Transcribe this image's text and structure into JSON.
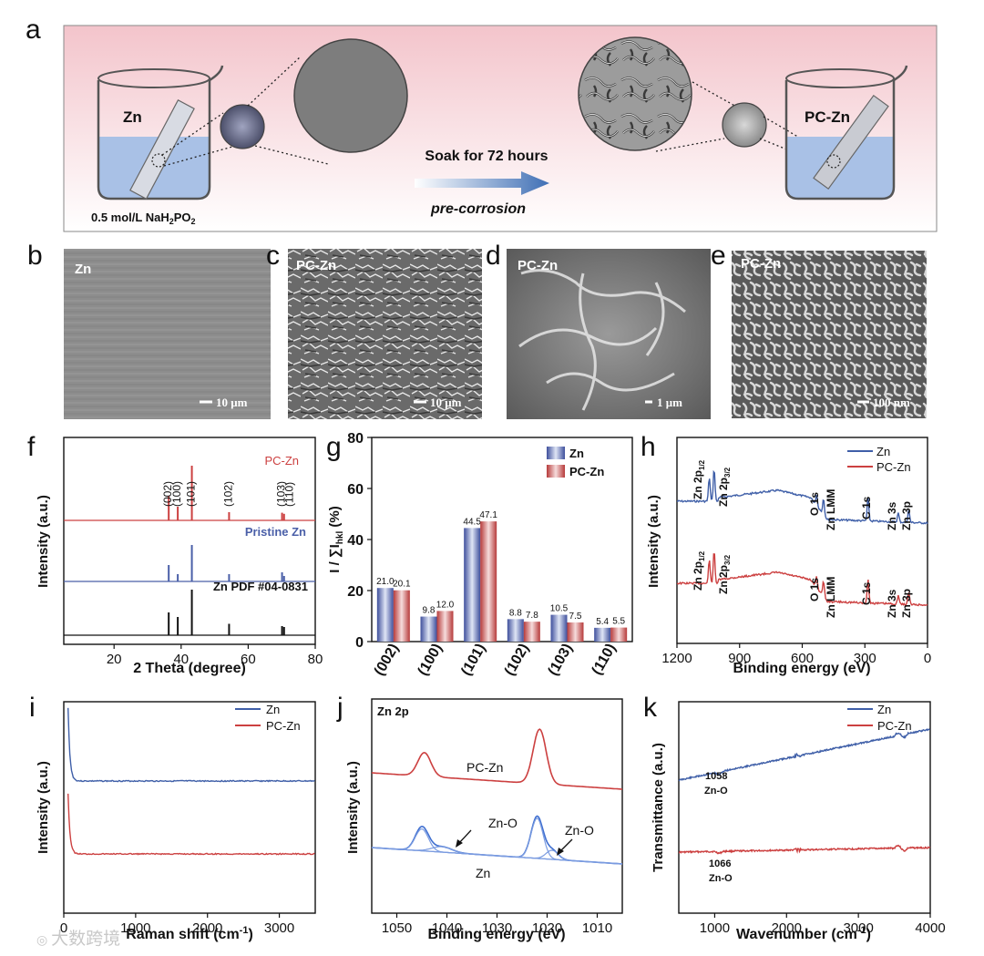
{
  "panel_letters": {
    "a": "a",
    "b": "b",
    "c": "c",
    "d": "d",
    "e": "e",
    "f": "f",
    "g": "g",
    "h": "h",
    "i": "i",
    "j": "j",
    "k": "k"
  },
  "schematic": {
    "beaker_left_label": "Zn",
    "beaker_right_label": "PC-Zn",
    "solution_prefix": "0.5 mol/L  NaH",
    "solution_sub1": "2",
    "solution_mid": "PO",
    "solution_sub2": "2",
    "soak_text": "Soak for 72 hours",
    "process_text": "pre-corrosion",
    "colors": {
      "bg_top": "#f3c9cf",
      "bg_bottom": "#ffffff",
      "solution": "#9bb7e0",
      "arrow": "#3f6fb5"
    }
  },
  "sem": [
    {
      "label": "Zn",
      "scale": "10 μm"
    },
    {
      "label": "PC-Zn",
      "scale": "10 μm"
    },
    {
      "label": "PC-Zn",
      "scale": "1 μm"
    },
    {
      "label": "PC-Zn",
      "scale": "100 nm"
    }
  ],
  "watermark": "大数跨境",
  "chart_data": [
    {
      "id": "f",
      "type": "line",
      "title": "",
      "xlabel": "2 Theta (degree)",
      "ylabel": "Intensity (a.u.)",
      "xlim": [
        5,
        80
      ],
      "xticks": [
        20,
        40,
        60,
        80
      ],
      "series": [
        {
          "name": "PC-Zn",
          "color": "#cc4040",
          "peaks": [
            [
              36.3,
              0.45
            ],
            [
              39.0,
              0.25
            ],
            [
              43.2,
              1.0
            ],
            [
              54.3,
              0.15
            ],
            [
              70.1,
              0.14
            ],
            [
              70.7,
              0.12
            ]
          ]
        },
        {
          "name": "Pristine Zn",
          "color": "#4a5fa8",
          "peaks": [
            [
              36.3,
              0.45
            ],
            [
              39.0,
              0.2
            ],
            [
              43.2,
              1.0
            ],
            [
              54.3,
              0.2
            ],
            [
              70.1,
              0.25
            ],
            [
              70.7,
              0.15
            ]
          ]
        },
        {
          "name": "Zn PDF #04-0831",
          "color": "#111111",
          "peaks": [
            [
              36.3,
              0.5
            ],
            [
              39.0,
              0.4
            ],
            [
              43.2,
              1.0
            ],
            [
              54.3,
              0.25
            ],
            [
              70.1,
              0.2
            ],
            [
              70.7,
              0.18
            ]
          ]
        }
      ],
      "peak_labels": [
        "(002)",
        "(100)",
        "(101)",
        "(102)",
        "(103)",
        "(110)"
      ],
      "peak_label_x": [
        36.3,
        39.0,
        43.2,
        54.3,
        70.1,
        72.5
      ]
    },
    {
      "id": "g",
      "type": "bar",
      "title": "",
      "xlabel": "",
      "ylabel": "I / ∑I",
      "ylabel_sub": "hkl",
      "ylabel_suffix": " (%)",
      "ylim": [
        0,
        80
      ],
      "yticks": [
        0,
        20,
        40,
        60,
        80
      ],
      "categories": [
        "(002)",
        "(100)",
        "(101)",
        "(102)",
        "(103)",
        "(110)"
      ],
      "series": [
        {
          "name": "Zn",
          "color": "#5a6fb5",
          "values": [
            21.0,
            9.8,
            44.5,
            8.8,
            10.5,
            5.4
          ]
        },
        {
          "name": "PC-Zn",
          "color": "#c94a4a",
          "values": [
            20.1,
            12.0,
            47.1,
            7.8,
            7.5,
            5.5
          ]
        }
      ],
      "value_labels": [
        [
          "21.0",
          "9.8",
          "44.5",
          "8.8",
          "10.5",
          "5.4"
        ],
        [
          "20.1",
          "12.0",
          "47.1",
          "7.8",
          "7.5",
          "5.5"
        ]
      ]
    },
    {
      "id": "h",
      "type": "line",
      "title": "",
      "xlabel": "Binding energy (eV)",
      "ylabel": "Intensity (a.u.)",
      "xlim": [
        1200,
        0
      ],
      "xticks": [
        1200,
        900,
        600,
        300,
        0
      ],
      "series": [
        {
          "name": "Zn",
          "color": "#3f5fa8"
        },
        {
          "name": "PC-Zn",
          "color": "#cc4040"
        }
      ],
      "annotations": {
        "zn2p12": "Zn 2p",
        "zn2p12_sub": "1/2",
        "zn2p32": "Zn 2p",
        "zn2p32_sub": "3/2",
        "o1s": "O 1s",
        "znlmm": "Zn LMM",
        "c1s": "C 1s",
        "zn3s": "Zn 3s",
        "zn3p": "Zn 3p"
      }
    },
    {
      "id": "i",
      "type": "line",
      "title": "",
      "xlabel": "Raman shift (cm",
      "xlabel_sup": "-1",
      "xlabel_end": ")",
      "ylabel": "Intensity (a.u.)",
      "xlim": [
        0,
        3500
      ],
      "xticks": [
        0,
        1000,
        2000,
        3000
      ],
      "series": [
        {
          "name": "Zn",
          "color": "#3f5fa8"
        },
        {
          "name": "PC-Zn",
          "color": "#cc4040"
        }
      ]
    },
    {
      "id": "j",
      "type": "line",
      "title": "Zn 2p",
      "xlabel": "Binding energy (eV)",
      "ylabel": "Intensity (a.u.)",
      "xlim": [
        1055,
        1005
      ],
      "xticks": [
        1050,
        1040,
        1030,
        1020,
        1010
      ],
      "series": [
        {
          "name": "PC-Zn",
          "color": "#cc4040",
          "peaks_eV": [
            1044.5,
            1021.5
          ]
        },
        {
          "name": "Zn",
          "color": "#3f6fd0",
          "peaks_eV": [
            1045.0,
            1022.0
          ],
          "zno_eV": [
            1041.0,
            1019.0
          ]
        }
      ],
      "labels": {
        "pczn": "PC-Zn",
        "zn": "Zn",
        "zno1": "Zn-O",
        "zno2": "Zn-O"
      }
    },
    {
      "id": "k",
      "type": "line",
      "title": "",
      "xlabel": "Wavenumber (cm",
      "xlabel_sup": "-1",
      "xlabel_end": ")",
      "ylabel": "Transmittance (a.u.)",
      "xlim": [
        500,
        4000
      ],
      "xticks": [
        1000,
        2000,
        3000,
        4000
      ],
      "series": [
        {
          "name": "Zn",
          "color": "#3f5fa8"
        },
        {
          "name": "PC-Zn",
          "color": "#cc4040"
        }
      ],
      "labels": {
        "zn_peak": "1058",
        "zn_bond": "Zn-O",
        "pc_peak": "1066",
        "pc_bond": "Zn-O"
      }
    }
  ]
}
